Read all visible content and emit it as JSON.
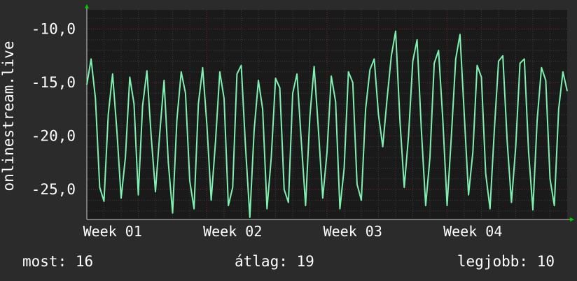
{
  "colors": {
    "background": "#2b2b2b",
    "plot_background": "#1a1a1a",
    "grid_minor": "#3a3a3a",
    "grid_major": "#6b2a2a",
    "series": "#7ef0b0",
    "arrow": "#00cc00",
    "text": "#ffffff"
  },
  "chart_data": {
    "type": "line",
    "ylabel": "onlinestream.live",
    "ylim": [
      -27.8,
      -8.2
    ],
    "yticks": [
      -10,
      -15,
      -20,
      -25
    ],
    "ytick_labels": [
      "-10,0",
      "-15,0",
      "-20,0",
      "-25,0"
    ],
    "x_range_days": [
      0,
      28
    ],
    "xticks": [
      {
        "day": 1.5,
        "label": "Week 01"
      },
      {
        "day": 8.5,
        "label": "Week 02"
      },
      {
        "day": 15.5,
        "label": "Week 03"
      },
      {
        "day": 22.5,
        "label": "Week 04"
      }
    ],
    "series": [
      {
        "x": [
          0,
          0.25,
          0.5,
          0.75,
          1,
          1.25,
          1.5,
          1.75,
          2,
          2.25,
          2.5,
          2.75,
          3,
          3.25,
          3.5,
          3.75,
          4,
          4.25,
          4.5,
          4.75,
          5,
          5.25,
          5.5,
          5.75,
          6,
          6.25,
          6.5,
          6.75,
          7,
          7.25,
          7.5,
          7.75,
          8,
          8.25,
          8.5,
          8.75,
          9,
          9.25,
          9.5,
          9.75,
          10,
          10.25,
          10.5,
          10.75,
          11,
          11.25,
          11.5,
          11.75,
          12,
          12.25,
          12.5,
          12.75,
          13,
          13.25,
          13.5,
          13.75,
          14,
          14.25,
          14.5,
          14.75,
          15,
          15.25,
          15.5,
          15.75,
          16,
          16.25,
          16.5,
          16.75,
          17,
          17.25,
          17.5,
          17.75,
          18,
          18.25,
          18.5,
          18.75,
          19,
          19.25,
          19.5,
          19.75,
          20,
          20.25,
          20.5,
          20.75,
          21,
          21.25,
          21.5,
          21.75,
          22,
          22.25,
          22.5,
          22.75,
          23,
          23.25,
          23.5,
          23.75,
          24,
          24.25,
          24.5,
          24.75,
          25,
          25.25,
          25.5,
          25.75,
          26,
          26.25,
          26.5,
          26.75,
          27,
          27.25,
          27.5,
          27.75,
          28
        ],
        "values": [
          -15.2,
          -12.8,
          -16.5,
          -24.8,
          -26.1,
          -18.0,
          -14.2,
          -19.5,
          -25.8,
          -22.0,
          -14.5,
          -17.0,
          -25.5,
          -17.2,
          -13.9,
          -20.0,
          -25.2,
          -19.8,
          -14.8,
          -22.5,
          -27.2,
          -18.5,
          -14.0,
          -16.0,
          -24.2,
          -26.8,
          -17.0,
          -13.6,
          -19.0,
          -26.0,
          -20.5,
          -14.0,
          -16.5,
          -26.5,
          -24.8,
          -14.2,
          -13.4,
          -21.0,
          -27.6,
          -19.5,
          -14.8,
          -17.5,
          -26.8,
          -22.0,
          -14.6,
          -15.5,
          -25.0,
          -26.2,
          -16.0,
          -14.2,
          -20.5,
          -26.5,
          -18.2,
          -13.5,
          -19.5,
          -25.8,
          -21.5,
          -14.4,
          -16.8,
          -26.8,
          -23.0,
          -14.0,
          -15.0,
          -24.5,
          -26.0,
          -17.5,
          -13.8,
          -12.8,
          -18.0,
          -21.0,
          -16.5,
          -12.5,
          -10.2,
          -18.5,
          -24.8,
          -20.0,
          -13.0,
          -11.0,
          -19.5,
          -26.5,
          -22.0,
          -13.2,
          -12.0,
          -18.5,
          -26.5,
          -20.0,
          -12.8,
          -10.5,
          -18.0,
          -25.5,
          -21.5,
          -13.4,
          -14.5,
          -23.5,
          -26.8,
          -19.5,
          -13.0,
          -12.5,
          -20.5,
          -26.2,
          -21.0,
          -13.2,
          -12.8,
          -21.5,
          -26.9,
          -18.5,
          -13.6,
          -14.8,
          -24.0,
          -26.5,
          -17.5,
          -14.0,
          -15.8
        ]
      }
    ]
  },
  "stats": {
    "current_label": "most:",
    "current_value": "16",
    "average_label": "átlag:",
    "average_value": "19",
    "best_label": "legjobb:",
    "best_value": "10"
  }
}
